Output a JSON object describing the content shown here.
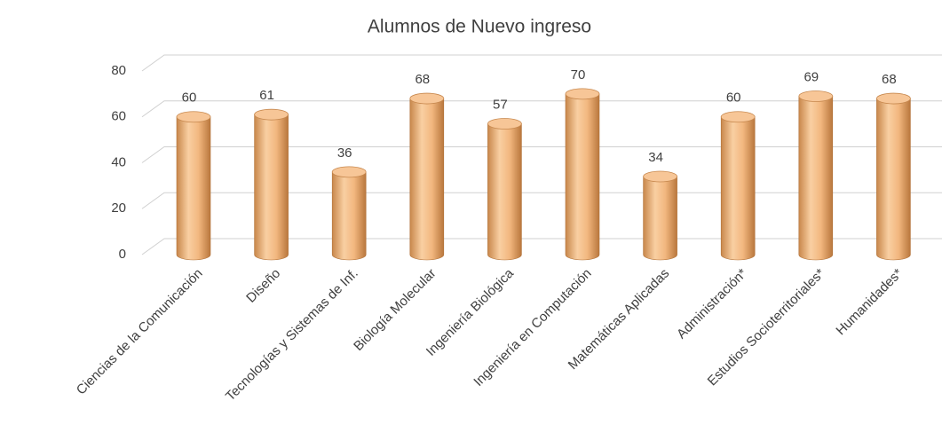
{
  "chart_data": {
    "type": "bar",
    "title": "Alumnos de Nuevo ingreso",
    "categories": [
      "Ciencias de la Comunicación",
      "Diseño",
      "Tecnologías y Sistemas de Inf.",
      "Biología Molecular",
      "Ingeniería Biológica",
      "Ingeniería en Computación",
      "Matemáticas Aplicadas",
      "Administración*",
      "Estudios Socioterritoriales*",
      "Humanidades*"
    ],
    "values": [
      60,
      61,
      36,
      68,
      57,
      70,
      34,
      60,
      69,
      68
    ],
    "color": "#f0b27a",
    "ylim": [
      0,
      80
    ],
    "yticks": [
      0,
      20,
      40,
      60,
      80
    ],
    "grid": true
  }
}
